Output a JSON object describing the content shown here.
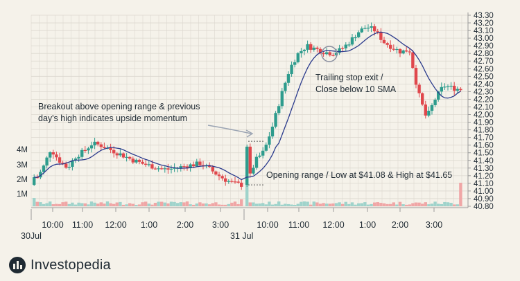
{
  "chart_data": {
    "type": "candlestick",
    "y_right_axis": {
      "min": 40.8,
      "max": 43.3,
      "step": 0.1,
      "ticks": [
        "43.30",
        "43.20",
        "43.10",
        "43.00",
        "42.90",
        "42.80",
        "42.70",
        "42.60",
        "42.50",
        "42.40",
        "42.30",
        "42.20",
        "42.10",
        "42.00",
        "41.90",
        "41.80",
        "41.70",
        "41.60",
        "41.50",
        "41.40",
        "41.30",
        "41.20",
        "41.10",
        "41.00",
        "40.90",
        "40.80"
      ]
    },
    "volume_axis": {
      "ticks": [
        "4M",
        "3M",
        "2M",
        "1M"
      ]
    },
    "x_axis": {
      "time_ticks": [
        "10:00",
        "11:00",
        "12:00",
        "1:00",
        "2:00",
        "3:00",
        "10:00",
        "11:00",
        "12:00",
        "1:00",
        "2:00",
        "3:00"
      ],
      "day_labels": [
        "30Jul",
        "31 Jul"
      ]
    },
    "colors": {
      "up": "#2e9c8d",
      "down": "#e0474c",
      "sma": "#2a3a8c",
      "grid": "#dcd8cf",
      "volume_up": "#9fd3cb",
      "volume_down": "#f0a6a6"
    },
    "day1_path": [
      41.12,
      41.28,
      41.55,
      41.4,
      41.3,
      41.45,
      41.52,
      41.62,
      41.6,
      41.55,
      41.5,
      41.45,
      41.4,
      41.36,
      41.33,
      41.3,
      41.28,
      41.3,
      41.32,
      41.34,
      41.36,
      41.3,
      41.22,
      41.15,
      41.1,
      41.08
    ],
    "day2_path": [
      41.08,
      41.4,
      41.52,
      41.85,
      42.25,
      42.6,
      42.8,
      42.9,
      42.86,
      42.82,
      42.8,
      42.85,
      42.95,
      43.08,
      43.15,
      43.1,
      42.95,
      42.88,
      42.82,
      42.85,
      42.3,
      41.95,
      42.2,
      42.38,
      42.35,
      42.33
    ],
    "opening_range": {
      "low": 41.08,
      "high": 41.65
    }
  },
  "annotations": {
    "breakout": [
      "Breakout above opening range & previous",
      "day's high indicates upside momentum"
    ],
    "trailing": [
      "Trailing stop exit /",
      "Close below 10 SMA"
    ],
    "opening": "Opening range / Low at $41.08 & High at $41.65"
  },
  "brand": {
    "name": "Investopedia"
  }
}
